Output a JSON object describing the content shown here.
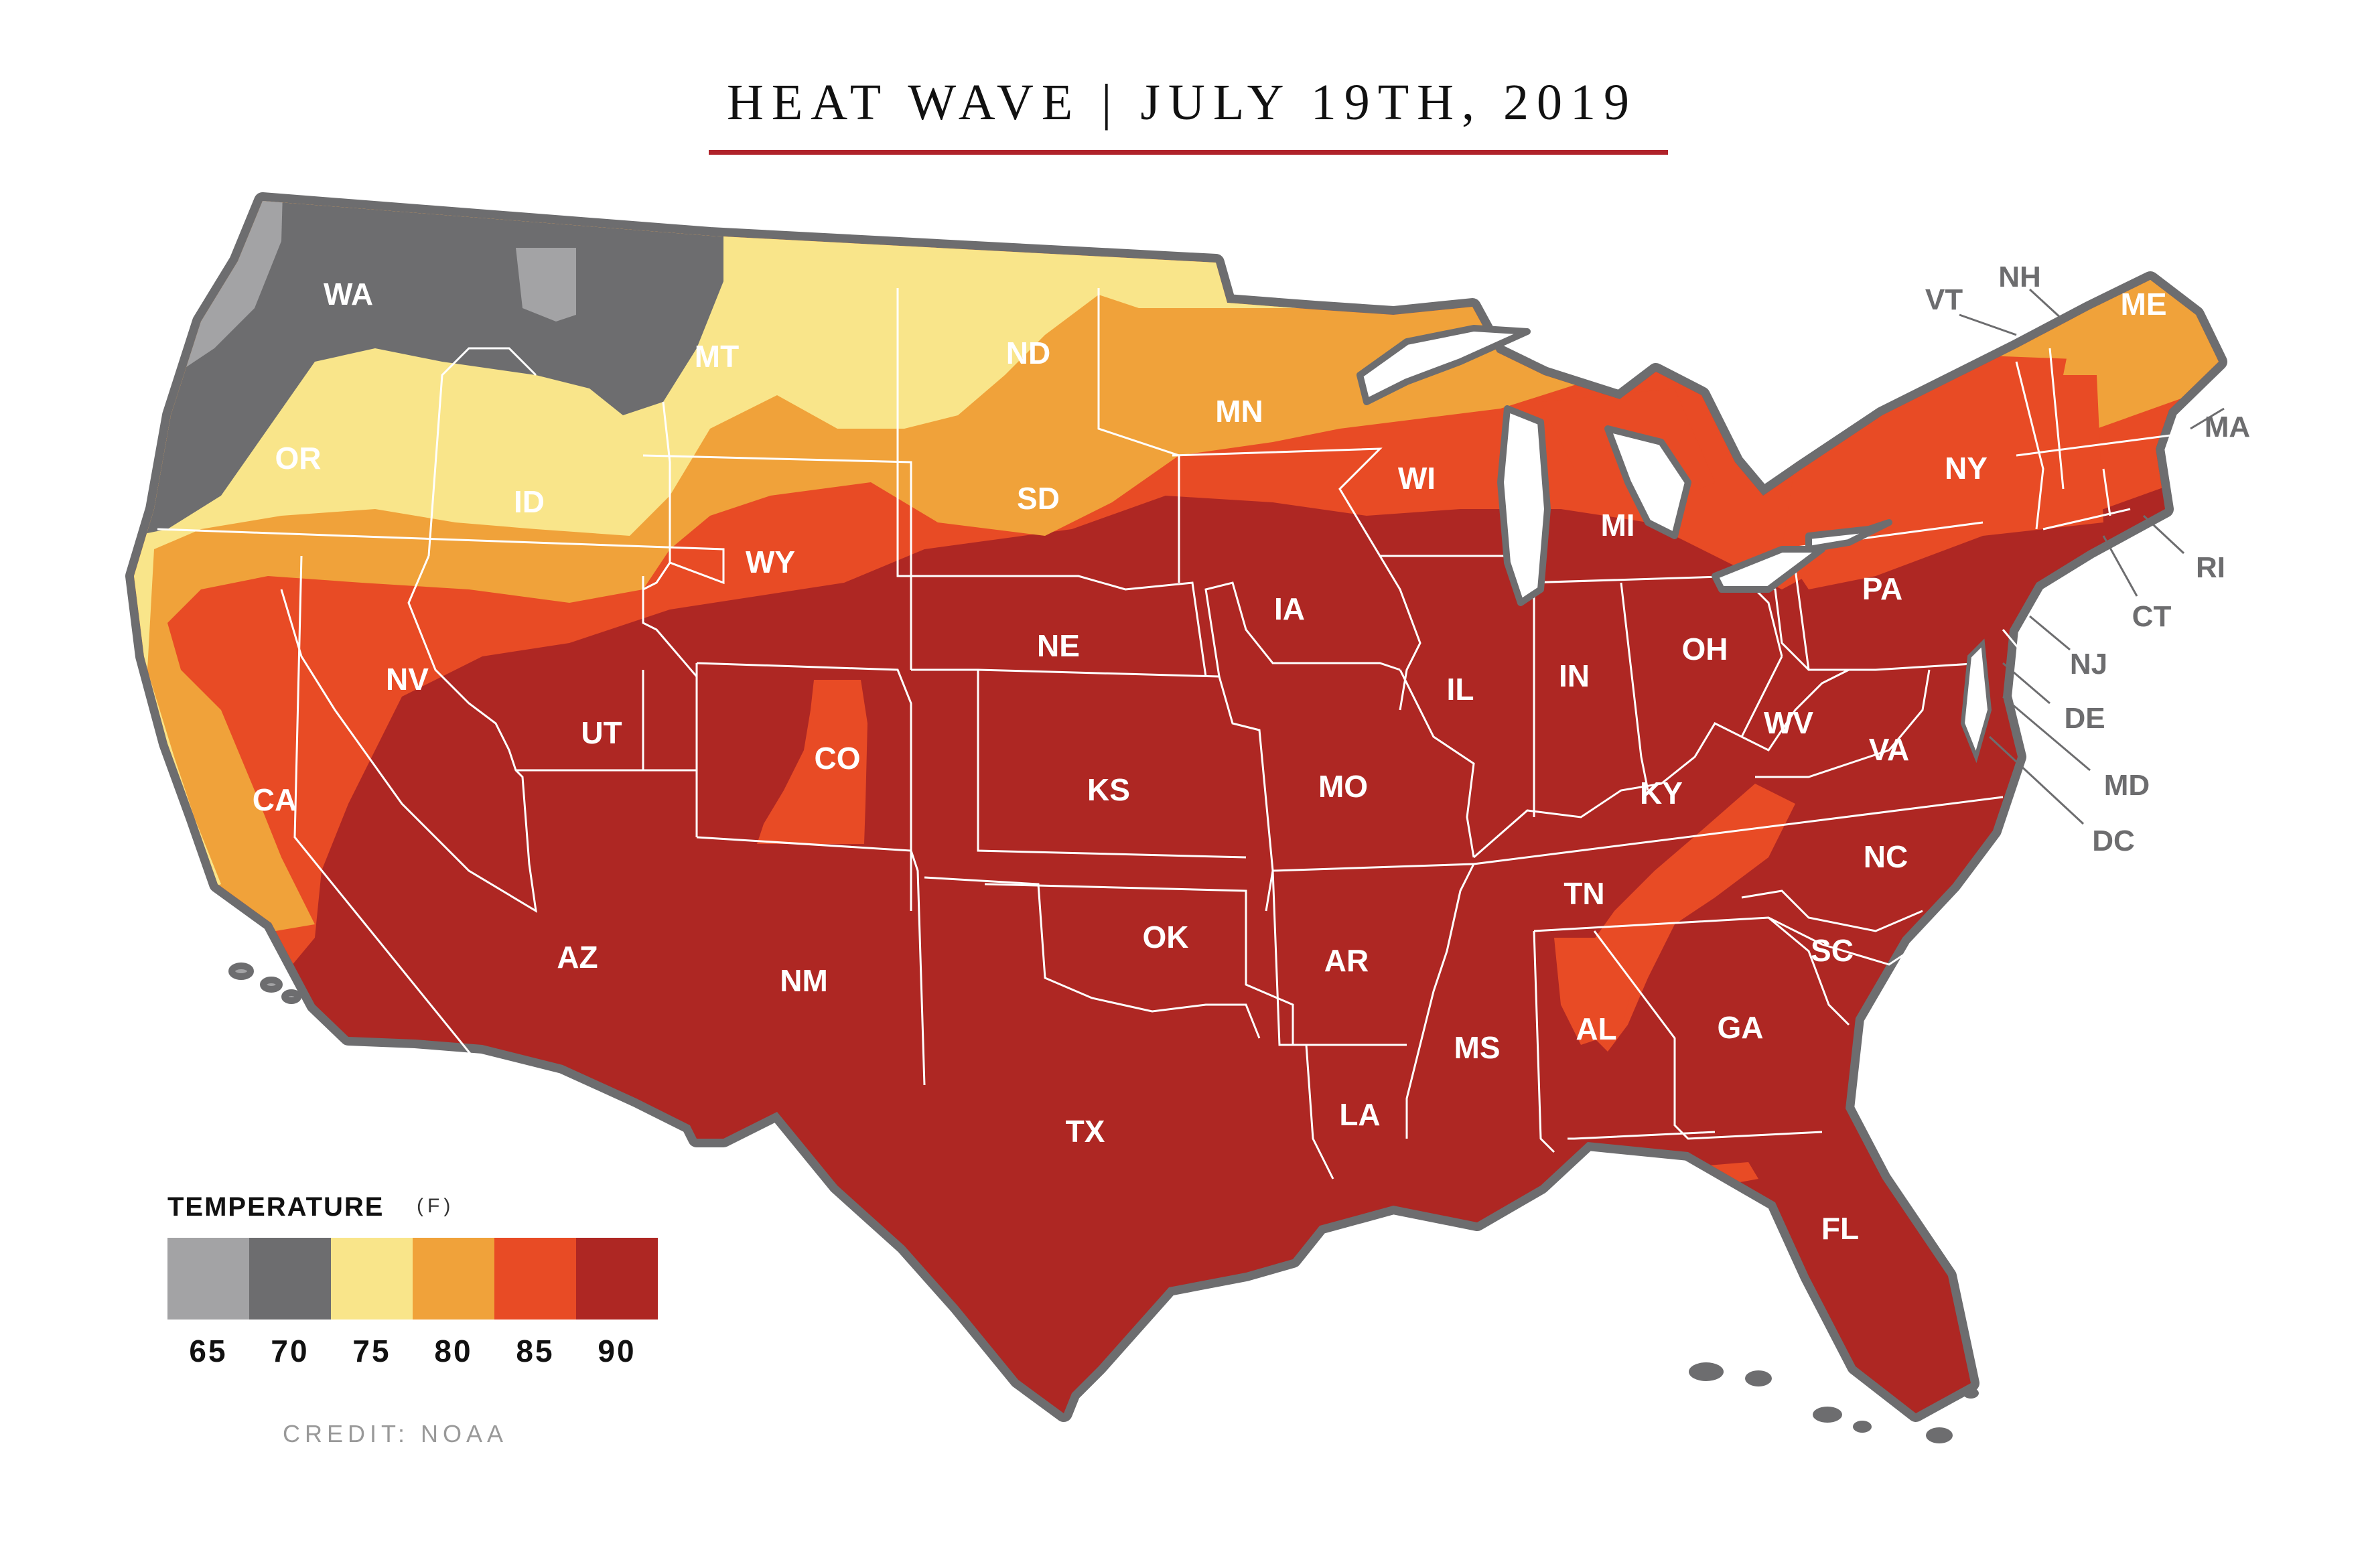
{
  "title": "HEAT WAVE  |  JULY 19TH, 2019",
  "legend": {
    "title": "TEMPERATURE",
    "unit": "(F)",
    "bins": [
      {
        "label": "65",
        "color": "#a3a3a5"
      },
      {
        "label": "70",
        "color": "#6d6d6f"
      },
      {
        "label": "75",
        "color": "#f9e58a"
      },
      {
        "label": "80",
        "color": "#f0a23a"
      },
      {
        "label": "85",
        "color": "#e84b25"
      },
      {
        "label": "90",
        "color": "#ae2723"
      }
    ]
  },
  "credit": "CREDIT: NOAA",
  "colors": {
    "outline": "#6d6d6f",
    "state_border": "#ffffff",
    "title_rule": "#b0232a"
  },
  "states": {
    "wa": "WA",
    "mt": "MT",
    "or": "OR",
    "id": "ID",
    "nd": "ND",
    "mn": "MN",
    "sd": "SD",
    "wy": "WY",
    "wi": "WI",
    "mi": "MI",
    "ny": "NY",
    "me": "ME",
    "nv": "NV",
    "ca": "CA",
    "ut": "UT",
    "co": "CO",
    "ne": "NE",
    "ia": "IA",
    "il": "IL",
    "in": "IN",
    "oh": "OH",
    "pa": "PA",
    "ks": "KS",
    "mo": "MO",
    "ky": "KY",
    "wv": "WV",
    "va": "VA",
    "az": "AZ",
    "nm": "NM",
    "ok": "OK",
    "ar": "AR",
    "tn": "TN",
    "nc": "NC",
    "sc": "SC",
    "ms": "MS",
    "al": "AL",
    "ga": "GA",
    "la": "LA",
    "tx": "TX",
    "fl": "FL"
  },
  "callouts": {
    "vt": "VT",
    "nh": "NH",
    "ma": "MA",
    "ri": "RI",
    "ct": "CT",
    "nj": "NJ",
    "de": "DE",
    "md": "MD",
    "dc": "DC"
  }
}
